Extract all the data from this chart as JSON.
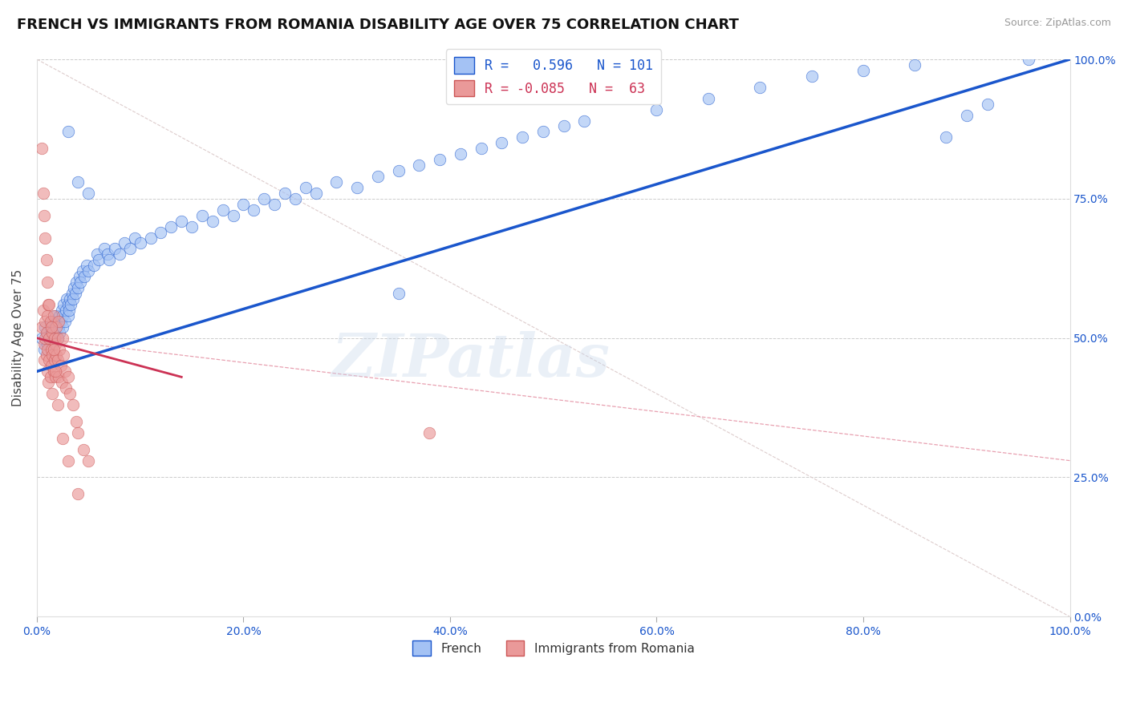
{
  "title": "FRENCH VS IMMIGRANTS FROM ROMANIA DISABILITY AGE OVER 75 CORRELATION CHART",
  "source": "Source: ZipAtlas.com",
  "ylabel": "Disability Age Over 75",
  "xlim": [
    0.0,
    1.0
  ],
  "ylim": [
    0.0,
    1.0
  ],
  "xticks": [
    0.0,
    0.2,
    0.4,
    0.6,
    0.8,
    1.0
  ],
  "yticks": [
    0.0,
    0.25,
    0.5,
    0.75,
    1.0
  ],
  "xtick_labels": [
    "0.0%",
    "20.0%",
    "40.0%",
    "60.0%",
    "80.0%",
    "100.0%"
  ],
  "ytick_labels": [
    "0.0%",
    "25.0%",
    "50.0%",
    "75.0%",
    "100.0%"
  ],
  "legend_labels": [
    "French",
    "Immigrants from Romania"
  ],
  "blue_R": 0.596,
  "blue_N": 101,
  "pink_R": -0.085,
  "pink_N": 63,
  "blue_color": "#a4c2f4",
  "pink_color": "#ea9999",
  "blue_line_color": "#1a56cc",
  "pink_line_color": "#cc3355",
  "pink_dash_color": "#e8a0b0",
  "title_fontsize": 13,
  "axis_label_fontsize": 11,
  "tick_fontsize": 10,
  "watermark": "ZIPatlas",
  "blue_scatter_x": [
    0.005,
    0.007,
    0.008,
    0.01,
    0.01,
    0.012,
    0.013,
    0.014,
    0.015,
    0.015,
    0.016,
    0.017,
    0.018,
    0.018,
    0.019,
    0.02,
    0.02,
    0.021,
    0.022,
    0.022,
    0.023,
    0.024,
    0.025,
    0.025,
    0.026,
    0.027,
    0.028,
    0.029,
    0.03,
    0.03,
    0.031,
    0.032,
    0.033,
    0.034,
    0.035,
    0.036,
    0.037,
    0.038,
    0.04,
    0.041,
    0.042,
    0.044,
    0.046,
    0.048,
    0.05,
    0.055,
    0.058,
    0.06,
    0.065,
    0.068,
    0.07,
    0.075,
    0.08,
    0.085,
    0.09,
    0.095,
    0.1,
    0.11,
    0.12,
    0.13,
    0.14,
    0.15,
    0.16,
    0.17,
    0.18,
    0.19,
    0.2,
    0.21,
    0.22,
    0.23,
    0.24,
    0.25,
    0.26,
    0.27,
    0.29,
    0.31,
    0.33,
    0.35,
    0.37,
    0.39,
    0.41,
    0.43,
    0.45,
    0.47,
    0.49,
    0.51,
    0.53,
    0.35,
    0.6,
    0.65,
    0.7,
    0.75,
    0.8,
    0.85,
    0.88,
    0.9,
    0.92,
    0.03,
    0.04,
    0.05,
    0.96
  ],
  "blue_scatter_y": [
    0.5,
    0.48,
    0.52,
    0.49,
    0.51,
    0.5,
    0.52,
    0.51,
    0.53,
    0.49,
    0.51,
    0.5,
    0.52,
    0.54,
    0.51,
    0.53,
    0.5,
    0.52,
    0.54,
    0.51,
    0.53,
    0.55,
    0.52,
    0.54,
    0.56,
    0.53,
    0.55,
    0.57,
    0.54,
    0.56,
    0.55,
    0.57,
    0.56,
    0.58,
    0.57,
    0.59,
    0.58,
    0.6,
    0.59,
    0.61,
    0.6,
    0.62,
    0.61,
    0.63,
    0.62,
    0.63,
    0.65,
    0.64,
    0.66,
    0.65,
    0.64,
    0.66,
    0.65,
    0.67,
    0.66,
    0.68,
    0.67,
    0.68,
    0.69,
    0.7,
    0.71,
    0.7,
    0.72,
    0.71,
    0.73,
    0.72,
    0.74,
    0.73,
    0.75,
    0.74,
    0.76,
    0.75,
    0.77,
    0.76,
    0.78,
    0.77,
    0.79,
    0.8,
    0.81,
    0.82,
    0.83,
    0.84,
    0.85,
    0.86,
    0.87,
    0.88,
    0.89,
    0.58,
    0.91,
    0.93,
    0.95,
    0.97,
    0.98,
    0.99,
    0.86,
    0.9,
    0.92,
    0.87,
    0.78,
    0.76,
    1.0
  ],
  "pink_scatter_x": [
    0.005,
    0.006,
    0.007,
    0.007,
    0.008,
    0.008,
    0.009,
    0.009,
    0.01,
    0.01,
    0.01,
    0.011,
    0.011,
    0.012,
    0.012,
    0.013,
    0.013,
    0.014,
    0.014,
    0.015,
    0.015,
    0.015,
    0.016,
    0.016,
    0.017,
    0.017,
    0.018,
    0.018,
    0.019,
    0.019,
    0.02,
    0.02,
    0.021,
    0.021,
    0.022,
    0.023,
    0.024,
    0.025,
    0.026,
    0.027,
    0.028,
    0.03,
    0.032,
    0.035,
    0.038,
    0.04,
    0.045,
    0.05,
    0.005,
    0.006,
    0.007,
    0.008,
    0.009,
    0.01,
    0.012,
    0.014,
    0.016,
    0.018,
    0.02,
    0.025,
    0.03,
    0.04,
    0.38
  ],
  "pink_scatter_y": [
    0.52,
    0.55,
    0.49,
    0.46,
    0.53,
    0.5,
    0.47,
    0.51,
    0.54,
    0.48,
    0.44,
    0.56,
    0.42,
    0.5,
    0.46,
    0.53,
    0.43,
    0.48,
    0.45,
    0.51,
    0.47,
    0.4,
    0.54,
    0.44,
    0.5,
    0.46,
    0.49,
    0.43,
    0.52,
    0.47,
    0.5,
    0.46,
    0.53,
    0.43,
    0.48,
    0.45,
    0.42,
    0.5,
    0.47,
    0.44,
    0.41,
    0.43,
    0.4,
    0.38,
    0.35,
    0.33,
    0.3,
    0.28,
    0.84,
    0.76,
    0.72,
    0.68,
    0.64,
    0.6,
    0.56,
    0.52,
    0.48,
    0.44,
    0.38,
    0.32,
    0.28,
    0.22,
    0.33
  ]
}
